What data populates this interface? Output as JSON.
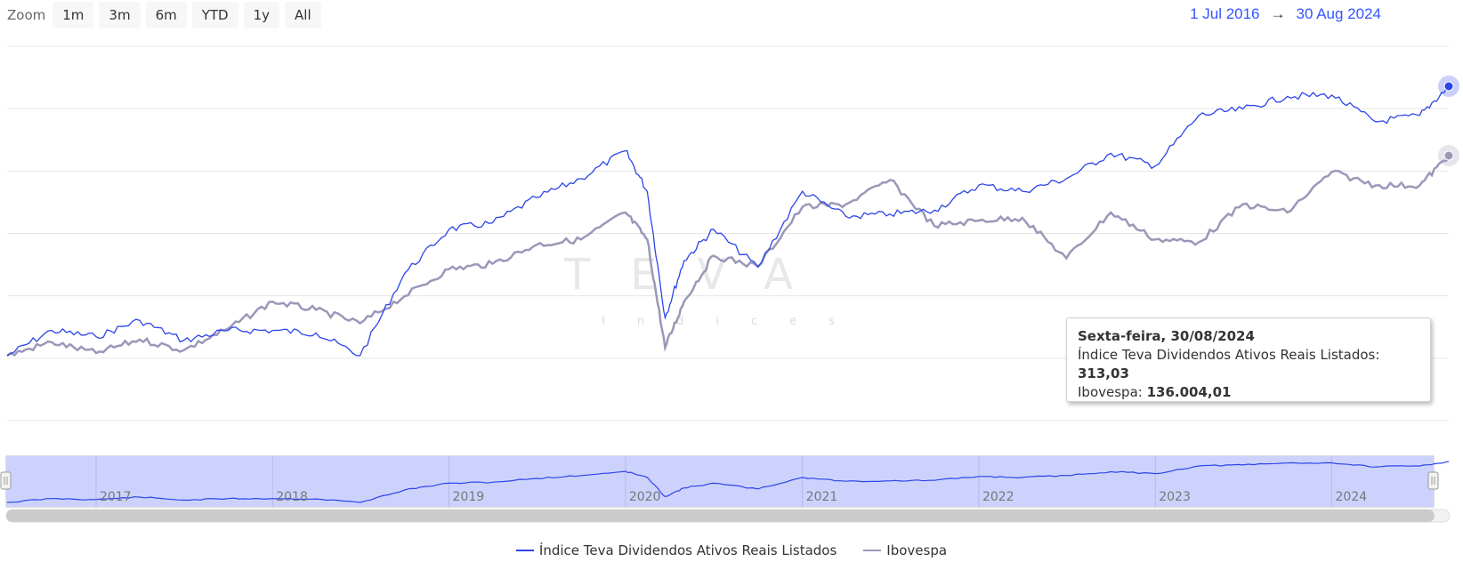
{
  "zoom": {
    "label": "Zoom",
    "buttons": [
      "1m",
      "3m",
      "6m",
      "YTD",
      "1y",
      "All"
    ]
  },
  "range": {
    "from": "1 Jul 2016",
    "arrow": "→",
    "to": "30 Aug 2024"
  },
  "watermark": {
    "title": "TEVA",
    "subtitle": "Indices"
  },
  "colors": {
    "teva": "#2b44e8",
    "ibov": "#9a98b8",
    "navigator_fill": "#cdd2fd"
  },
  "tooltip": {
    "date": "Sexta-feira, 30/08/2024",
    "series1_name": "Índice Teva Dividendos Ativos Reais Listados",
    "series1_value": "313,03",
    "series2_name": "Ibovespa",
    "series2_value": "136.004,01"
  },
  "legend": [
    {
      "name": "Índice Teva Dividendos Ativos Reais Listados",
      "color": "#2b44e8"
    },
    {
      "name": "Ibovespa",
      "color": "#9a98b8"
    }
  ],
  "chart_data": {
    "type": "line",
    "y_axis_labels": "hidden",
    "grid": true,
    "x": [
      "2016-07-01",
      "2016-10-01",
      "2017-01-01",
      "2017-04-01",
      "2017-07-01",
      "2017-10-01",
      "2018-01-01",
      "2018-04-01",
      "2018-07-01",
      "2018-10-01",
      "2019-01-01",
      "2019-04-01",
      "2019-07-01",
      "2019-10-01",
      "2020-01-01",
      "2020-02-15",
      "2020-03-23",
      "2020-05-01",
      "2020-07-01",
      "2020-10-01",
      "2021-01-01",
      "2021-04-01",
      "2021-07-01",
      "2021-10-01",
      "2022-01-01",
      "2022-04-01",
      "2022-07-01",
      "2022-10-01",
      "2023-01-01",
      "2023-04-01",
      "2023-07-01",
      "2023-10-01",
      "2024-01-01",
      "2024-04-01",
      "2024-07-01",
      "2024-08-30"
    ],
    "series": [
      {
        "name": "Índice Teva Dividendos Ativos Reais Listados",
        "values": [
          100,
          120,
          115,
          128,
          112,
          120,
          120,
          118,
          100,
          165,
          200,
          205,
          225,
          240,
          262,
          230,
          130,
          175,
          200,
          170,
          230,
          210,
          212,
          215,
          235,
          230,
          240,
          260,
          250,
          290,
          295,
          305,
          306,
          285,
          290,
          313.03
        ]
      },
      {
        "name": "Ibovespa",
        "values": [
          62000,
          67000,
          63000,
          68000,
          64000,
          72000,
          82000,
          79000,
          74000,
          84000,
          94000,
          96000,
          103000,
          105000,
          115000,
          105000,
          65000,
          82000,
          99000,
          95000,
          117000,
          118000,
          127000,
          110000,
          112000,
          113000,
          98000,
          115000,
          105000,
          104000,
          118000,
          115000,
          130000,
          125000,
          125000,
          136004.01
        ]
      }
    ],
    "navigator_x_labels": [
      "2017",
      "2018",
      "2019",
      "2020",
      "2021",
      "2022",
      "2023",
      "2024"
    ]
  }
}
